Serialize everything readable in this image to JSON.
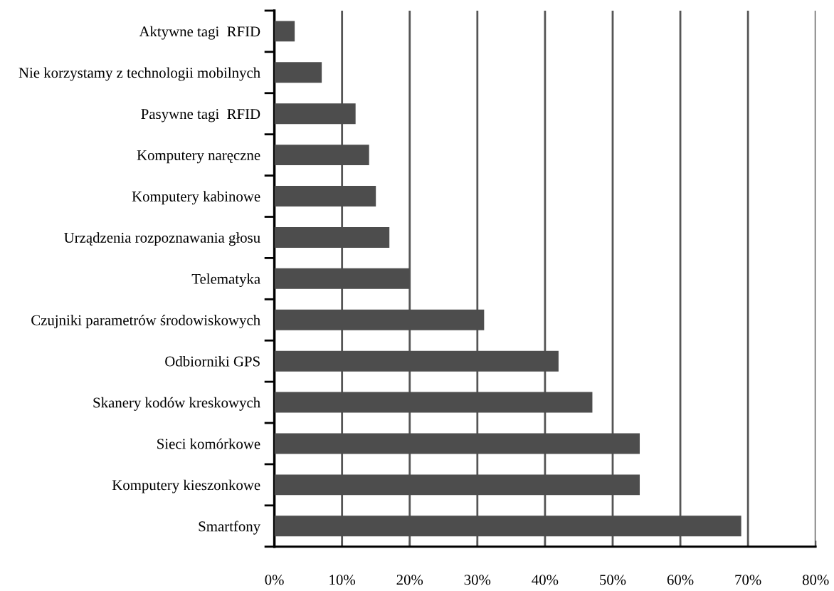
{
  "chart_data": {
    "type": "bar",
    "orientation": "horizontal",
    "categories": [
      "Aktywne tagi  RFID",
      "Nie korzystamy z technologii mobilnych",
      "Pasywne tagi  RFID",
      "Komputery naręczne",
      "Komputery kabinowe",
      "Urządzenia rozpoznawania głosu",
      "Telematyka",
      "Czujniki parametrów środowiskowych",
      "Odbiorniki GPS",
      "Skanery kodów kreskowych",
      "Sieci komórkowe",
      "Komputery kieszonkowe",
      "Smartfony"
    ],
    "values": [
      3,
      7,
      12,
      14,
      15,
      17,
      20,
      31,
      42,
      47,
      54,
      54,
      69
    ],
    "color": "#4d4d4d",
    "xlim": [
      0,
      80
    ],
    "xticks": [
      {
        "value": 0,
        "label": "0%"
      },
      {
        "value": 10,
        "label": "10%"
      },
      {
        "value": 20,
        "label": "20%"
      },
      {
        "value": 30,
        "label": "30%"
      },
      {
        "value": 40,
        "label": "40%"
      },
      {
        "value": 50,
        "label": "50%"
      },
      {
        "value": 60,
        "label": "60%"
      },
      {
        "value": 70,
        "label": "70%"
      },
      {
        "value": 80,
        "label": "80%"
      }
    ],
    "grid": "x"
  }
}
